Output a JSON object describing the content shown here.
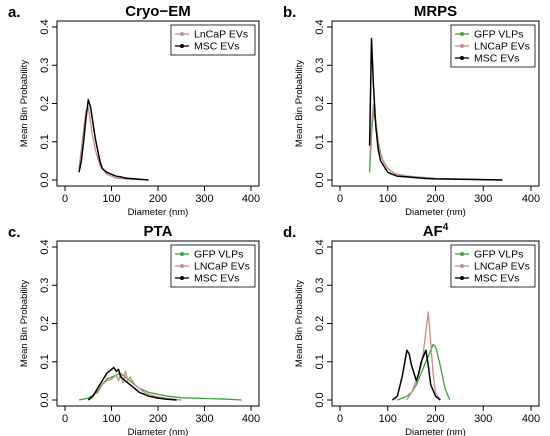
{
  "chart_data": [
    {
      "type": "line",
      "panel_label": "a.",
      "title": "Cryo−EM",
      "title_sup": "",
      "xlabel": "Diameter (nm)",
      "ylabel": "Mean Bin Probability",
      "xlim": [
        0,
        400
      ],
      "ylim": [
        0,
        0.4
      ],
      "x_ticks": [
        0,
        100,
        200,
        300,
        400
      ],
      "y_ticks": [
        0.0,
        0.1,
        0.2,
        0.3,
        0.4
      ],
      "legend_position": "top-right",
      "series": [
        {
          "name": "LnCaP EVs",
          "color": "#c98a8a",
          "x": [
            30,
            35,
            40,
            45,
            50,
            55,
            60,
            65,
            70,
            75,
            80,
            90,
            100,
            110,
            120,
            130,
            140,
            150,
            160
          ],
          "y": [
            0.03,
            0.08,
            0.13,
            0.18,
            0.19,
            0.15,
            0.11,
            0.08,
            0.06,
            0.04,
            0.03,
            0.015,
            0.01,
            0.005,
            0.004,
            0.003,
            0.002,
            0.002,
            0.001
          ]
        },
        {
          "name": "MSC EVs",
          "color": "#000000",
          "x": [
            30,
            35,
            40,
            45,
            50,
            55,
            60,
            65,
            70,
            75,
            80,
            90,
            100,
            110,
            120,
            130,
            140,
            150,
            160,
            170,
            180
          ],
          "y": [
            0.02,
            0.05,
            0.1,
            0.16,
            0.21,
            0.19,
            0.15,
            0.11,
            0.08,
            0.05,
            0.03,
            0.02,
            0.015,
            0.01,
            0.008,
            0.005,
            0.004,
            0.003,
            0.002,
            0.001,
            0.0
          ]
        }
      ]
    },
    {
      "type": "line",
      "panel_label": "b.",
      "title": "MRPS",
      "title_sup": "",
      "xlabel": "Diameter (nm)",
      "ylabel": "Mean Bin Probability",
      "xlim": [
        0,
        400
      ],
      "ylim": [
        0,
        0.4
      ],
      "x_ticks": [
        0,
        100,
        200,
        300,
        400
      ],
      "y_ticks": [
        0.0,
        0.1,
        0.2,
        0.3,
        0.4
      ],
      "legend_position": "top-right",
      "series": [
        {
          "name": "GFP VLPs",
          "color": "#3aa33a",
          "x": [
            62,
            66,
            70,
            75,
            80,
            85,
            90,
            95,
            100,
            110,
            120,
            140,
            160,
            180,
            200,
            250,
            300,
            340
          ],
          "y": [
            0.02,
            0.12,
            0.18,
            0.15,
            0.1,
            0.07,
            0.05,
            0.04,
            0.03,
            0.02,
            0.015,
            0.01,
            0.008,
            0.006,
            0.004,
            0.002,
            0.001,
            0.0
          ]
        },
        {
          "name": "LNCaP EVs",
          "color": "#c98a8a",
          "x": [
            62,
            66,
            70,
            75,
            80,
            85,
            90,
            95,
            100,
            110,
            120,
            140,
            160,
            180,
            200,
            250,
            300,
            340
          ],
          "y": [
            0.05,
            0.14,
            0.2,
            0.15,
            0.1,
            0.07,
            0.05,
            0.04,
            0.03,
            0.02,
            0.015,
            0.01,
            0.008,
            0.006,
            0.004,
            0.002,
            0.001,
            0.0
          ]
        },
        {
          "name": "MSC EVs",
          "color": "#000000",
          "x": [
            62,
            66,
            70,
            75,
            80,
            85,
            90,
            95,
            100,
            110,
            120,
            140,
            160,
            180,
            200,
            250,
            300,
            340
          ],
          "y": [
            0.09,
            0.37,
            0.25,
            0.14,
            0.08,
            0.05,
            0.04,
            0.03,
            0.02,
            0.015,
            0.01,
            0.008,
            0.006,
            0.004,
            0.003,
            0.002,
            0.001,
            0.0
          ]
        }
      ]
    },
    {
      "type": "line",
      "panel_label": "c.",
      "title": "PTA",
      "title_sup": "",
      "xlabel": "Diameter (nm)",
      "ylabel": "Mean Bin Probability",
      "xlim": [
        0,
        400
      ],
      "ylim": [
        0,
        0.4
      ],
      "x_ticks": [
        0,
        100,
        200,
        300,
        400
      ],
      "y_ticks": [
        0.0,
        0.1,
        0.2,
        0.3,
        0.4
      ],
      "legend_position": "top-right",
      "series": [
        {
          "name": "GFP VLPs",
          "color": "#3aa33a",
          "x": [
            30,
            50,
            70,
            80,
            90,
            100,
            110,
            120,
            130,
            140,
            150,
            160,
            180,
            200,
            220,
            250,
            300,
            350,
            380
          ],
          "y": [
            0.0,
            0.005,
            0.02,
            0.04,
            0.055,
            0.06,
            0.065,
            0.07,
            0.06,
            0.05,
            0.04,
            0.03,
            0.02,
            0.015,
            0.01,
            0.006,
            0.004,
            0.002,
            0.0
          ]
        },
        {
          "name": "LNCaP EVs",
          "color": "#c98a8a",
          "x": [
            50,
            60,
            70,
            80,
            90,
            100,
            110,
            115,
            120,
            125,
            130,
            135,
            140,
            150,
            160,
            170,
            180,
            200,
            220,
            250
          ],
          "y": [
            0.0,
            0.01,
            0.025,
            0.04,
            0.05,
            0.055,
            0.065,
            0.05,
            0.07,
            0.045,
            0.075,
            0.05,
            0.06,
            0.04,
            0.03,
            0.02,
            0.015,
            0.008,
            0.004,
            0.0
          ]
        },
        {
          "name": "MSC EVs",
          "color": "#000000",
          "x": [
            50,
            60,
            70,
            80,
            90,
            100,
            105,
            110,
            115,
            120,
            130,
            140,
            150,
            160,
            170,
            180,
            200,
            220,
            240
          ],
          "y": [
            0.0,
            0.01,
            0.03,
            0.05,
            0.07,
            0.08,
            0.085,
            0.075,
            0.08,
            0.06,
            0.05,
            0.04,
            0.03,
            0.02,
            0.015,
            0.01,
            0.005,
            0.002,
            0.0
          ]
        }
      ]
    },
    {
      "type": "line",
      "panel_label": "d.",
      "title": "AF",
      "title_sup": "4",
      "xlabel": "Diameter (nm)",
      "ylabel": "Mean Bin Probability",
      "xlim": [
        0,
        400
      ],
      "ylim": [
        0,
        0.4
      ],
      "x_ticks": [
        0,
        100,
        200,
        300,
        400
      ],
      "y_ticks": [
        0.0,
        0.1,
        0.2,
        0.3,
        0.4
      ],
      "legend_position": "top-right",
      "series": [
        {
          "name": "GFP VLPs",
          "color": "#3aa33a",
          "x": [
            120,
            140,
            150,
            160,
            170,
            180,
            190,
            195,
            200,
            210,
            220,
            230
          ],
          "y": [
            0.0,
            0.01,
            0.02,
            0.04,
            0.07,
            0.1,
            0.13,
            0.145,
            0.14,
            0.09,
            0.03,
            0.0
          ]
        },
        {
          "name": "LNCaP EVs",
          "color": "#c98a8a",
          "x": [
            140,
            150,
            160,
            170,
            175,
            180,
            185,
            190,
            195,
            200,
            210
          ],
          "y": [
            0.0,
            0.02,
            0.05,
            0.09,
            0.13,
            0.18,
            0.23,
            0.15,
            0.07,
            0.02,
            0.0
          ]
        },
        {
          "name": "MSC EVs",
          "color": "#000000",
          "x": [
            110,
            120,
            130,
            140,
            145,
            150,
            160,
            165,
            170,
            180,
            185,
            190,
            200,
            210
          ],
          "y": [
            0.0,
            0.01,
            0.06,
            0.13,
            0.12,
            0.09,
            0.05,
            0.07,
            0.1,
            0.13,
            0.09,
            0.04,
            0.01,
            0.0
          ]
        }
      ]
    }
  ]
}
